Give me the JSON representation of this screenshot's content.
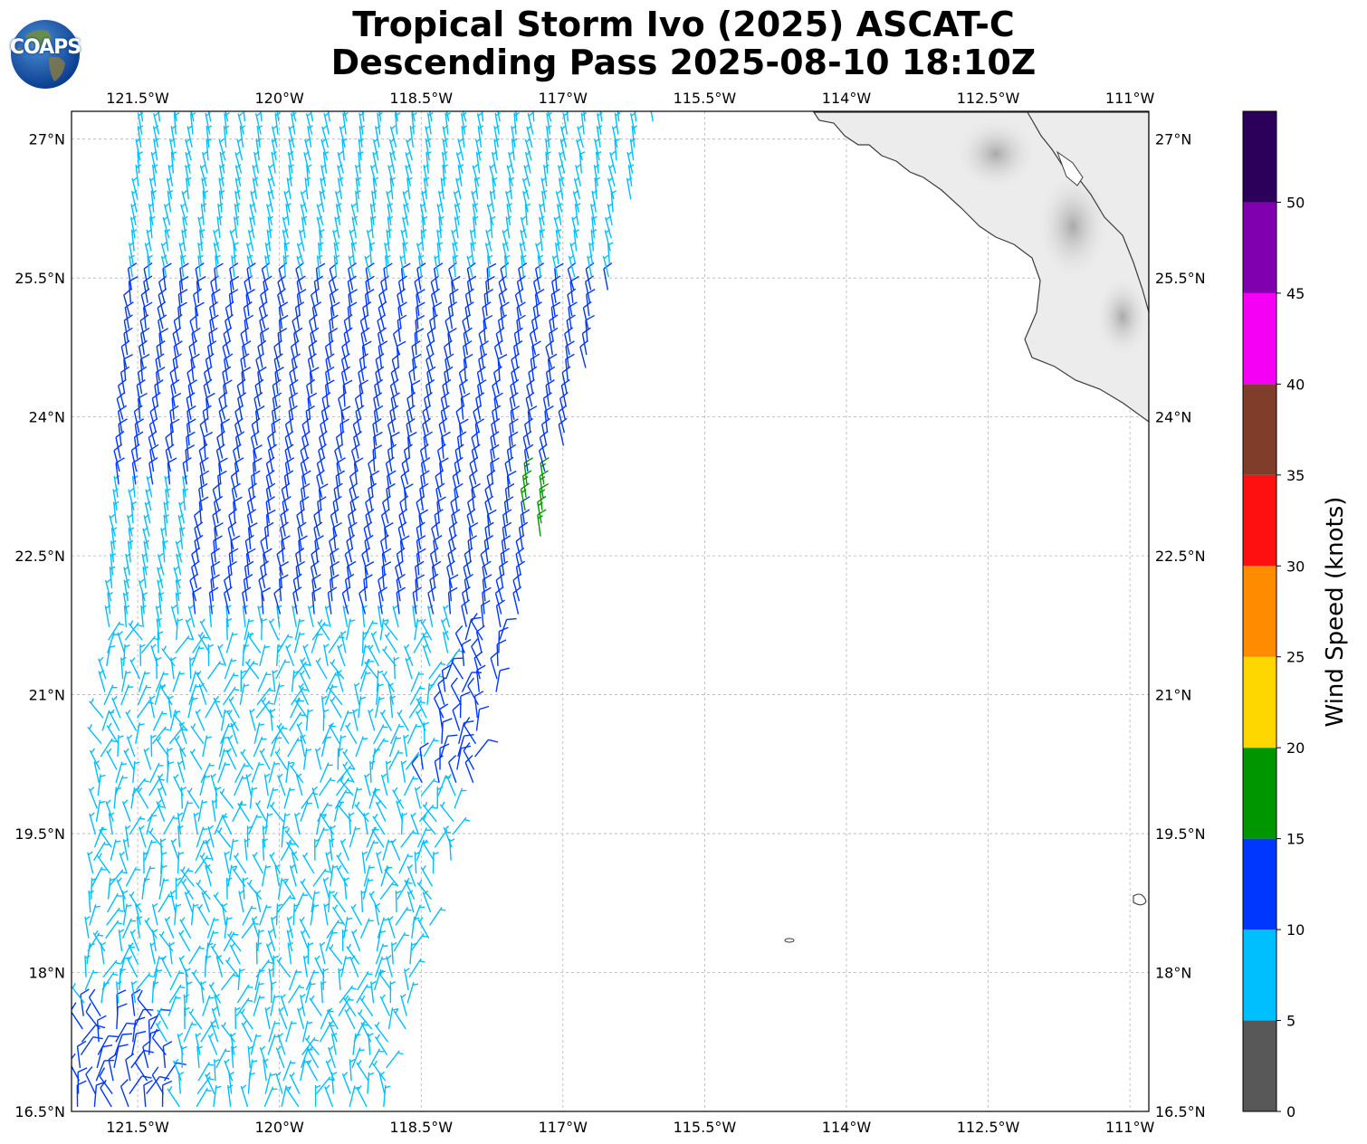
{
  "title": {
    "line1": "Tropical Storm Ivo (2025) ASCAT-C",
    "line2": "Descending Pass 2025-08-10 18:10Z"
  },
  "logo": {
    "text": "COAPS",
    "icon": "globe-icon"
  },
  "map": {
    "lon_range": [
      -122.2,
      -110.8
    ],
    "lat_range": [
      16.5,
      27.3
    ],
    "lon_ticks": [
      {
        "value": -121.5,
        "label": "121.5°W"
      },
      {
        "value": -120,
        "label": "120°W"
      },
      {
        "value": -118.5,
        "label": "118.5°W"
      },
      {
        "value": -117,
        "label": "117°W"
      },
      {
        "value": -115.5,
        "label": "115.5°W"
      },
      {
        "value": -114,
        "label": "114°W"
      },
      {
        "value": -112.5,
        "label": "112.5°W"
      },
      {
        "value": -111,
        "label": "111°W"
      }
    ],
    "lat_ticks": [
      {
        "value": 27,
        "label": "27°N"
      },
      {
        "value": 25.5,
        "label": "25.5°N"
      },
      {
        "value": 24,
        "label": "24°N"
      },
      {
        "value": 22.5,
        "label": "22.5°N"
      },
      {
        "value": 21,
        "label": "21°N"
      },
      {
        "value": 19.5,
        "label": "19.5°N"
      },
      {
        "value": 18,
        "label": "18°N"
      },
      {
        "value": 16.5,
        "label": "16.5°N"
      }
    ],
    "grid": true,
    "land_color": "#e6e6e6",
    "coast_color": "#333333"
  },
  "colorbar": {
    "label": "Wind Speed (knots)",
    "ticks": [
      "0",
      "5",
      "10",
      "15",
      "20",
      "25",
      "30",
      "35",
      "40",
      "45",
      "50"
    ],
    "bins": [
      {
        "min": 0,
        "max": 5,
        "color": "#585858"
      },
      {
        "min": 5,
        "max": 10,
        "color": "#00bfff"
      },
      {
        "min": 10,
        "max": 15,
        "color": "#0037ff"
      },
      {
        "min": 15,
        "max": 20,
        "color": "#009600"
      },
      {
        "min": 20,
        "max": 25,
        "color": "#ffd700"
      },
      {
        "min": 25,
        "max": 30,
        "color": "#ff8c00"
      },
      {
        "min": 30,
        "max": 35,
        "color": "#ff1010"
      },
      {
        "min": 35,
        "max": 40,
        "color": "#803d29"
      },
      {
        "min": 40,
        "max": 45,
        "color": "#f500f5"
      },
      {
        "min": 45,
        "max": 50,
        "color": "#8000b0"
      },
      {
        "min": 50,
        "max": 55,
        "color": "#2c005a"
      }
    ]
  },
  "chart_data": {
    "type": "scatter",
    "description": "ASCAT-C wind barbs",
    "swath_left_edge": [
      [
        -122.2,
        16.5
      ],
      [
        -121.5,
        27.3
      ]
    ],
    "swath_right_edge": [
      [
        -118.9,
        16.5
      ],
      [
        -116.0,
        27.3
      ]
    ],
    "speed_regions_knots": [
      {
        "region": "northern swath",
        "lat": [
          24.8,
          27.3
        ],
        "speed_knots": 8
      },
      {
        "region": "central band",
        "lat": [
          21.8,
          25.5
        ],
        "speed_knots": 12
      },
      {
        "region": "near eastern edge",
        "lon": [
          -117.4,
          -117.0
        ],
        "lat": [
          22.0,
          23.4
        ],
        "speed_knots": 17
      },
      {
        "region": "southern swath",
        "lat": [
          16.5,
          21.5
        ],
        "speed_knots": 7
      },
      {
        "region": "southwest corner",
        "lon": [
          -122.2,
          -121.2
        ],
        "lat": [
          16.5,
          17.6
        ],
        "speed_knots": 11
      }
    ],
    "islands": [
      {
        "lon": -114.25,
        "lat": 18.33
      },
      {
        "lon": -110.95,
        "lat": 18.78
      }
    ]
  }
}
